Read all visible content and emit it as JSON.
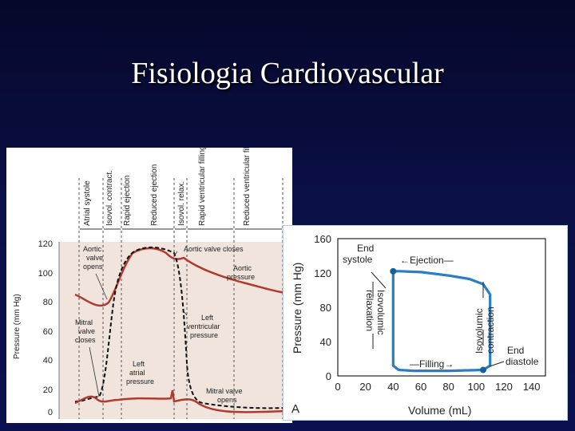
{
  "slide": {
    "title": "Fisiologia Cardiovascular"
  },
  "left_chart": {
    "phases": [
      "Atrial systole",
      "Isovol. contract.",
      "Rapid ejection",
      "Reduced ejection",
      "Isovol. relax.",
      "Rapid ventricular filling",
      "Reduced ventricular filling—diastasis"
    ],
    "y_title": "Pressure (mm Hg)",
    "y_ticks": [
      "120",
      "100",
      "80",
      "60",
      "40",
      "20",
      "0"
    ],
    "annotations": {
      "aortic_valve_opens": [
        "Aortic",
        "valve",
        "opens"
      ],
      "aortic_valve_closes": "Aortic valve closes",
      "aortic_pressure": [
        "Aortic",
        "pressure"
      ],
      "left_ventricular_pressure": [
        "Left",
        "ventricular",
        "pressure"
      ],
      "mitral_valve_closes": [
        "Mitral",
        "valve",
        "closes"
      ],
      "left_atrial_pressure": [
        "Left",
        "atrial",
        "pressure"
      ],
      "mitral_valve_opens": [
        "Mitral valve",
        "opens"
      ]
    },
    "colors": {
      "aortic": "#b03a2e",
      "ventricular": "#111111",
      "atrial": "#b03a2e",
      "band": "#f1e4dc"
    }
  },
  "chart_data": {
    "type": "line",
    "title": "",
    "xlabel": "Volume (mL)",
    "ylabel": "Pressure (mm Hg)",
    "xlim": [
      0,
      150
    ],
    "ylim": [
      0,
      160
    ],
    "x_ticks": [
      "0",
      "20",
      "40",
      "60",
      "80",
      "100",
      "120",
      "140"
    ],
    "y_ticks": [
      "0",
      "40",
      "80",
      "120",
      "160"
    ],
    "panel_letter": "A",
    "loop_color": "#2a7ec3",
    "series": [
      {
        "name": "",
        "points": [
          [
            40,
            122
          ],
          [
            45,
            122
          ],
          [
            60,
            121
          ],
          [
            80,
            117
          ],
          [
            95,
            113
          ],
          [
            105,
            107
          ],
          [
            110,
            95
          ],
          [
            110,
            50
          ],
          [
            110,
            12
          ],
          [
            105,
            7
          ],
          [
            80,
            6
          ],
          [
            55,
            6
          ],
          [
            44,
            7
          ],
          [
            40,
            12
          ],
          [
            40,
            60
          ],
          [
            40,
            122
          ]
        ]
      }
    ],
    "annotations": {
      "end_systole": [
        "End",
        "systole"
      ],
      "ejection": "Ejection",
      "isovolumic_relaxation": [
        "Isovolumic",
        "relaxation"
      ],
      "isovolumic_contraction": [
        "Isovolumic",
        "contraction"
      ],
      "filling": "Filling",
      "end_diastole": [
        "End",
        "diastole"
      ]
    }
  }
}
